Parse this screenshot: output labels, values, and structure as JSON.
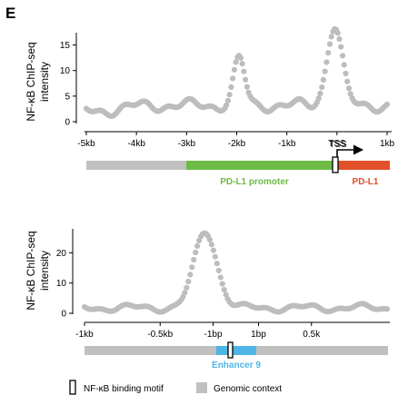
{
  "panel_letter": "E",
  "colors": {
    "points": "#bdbdbd",
    "genomic": "#c0c0c0",
    "promoter": "#6dbb45",
    "gene": "#e2502a",
    "enhancer": "#4eb6e6",
    "motif_box": "#000000",
    "arrow": "#000000"
  },
  "top": {
    "ylabel_lines": [
      "NF-κB ChIP-seq",
      "intensity"
    ],
    "tss_label": "TSS",
    "segments": {
      "promoter_label": "PD-L1 promoter",
      "gene_label": "PD-L1"
    }
  },
  "bottom": {
    "ylabel_lines": [
      "NF-κB ChIP-seq",
      "intensity"
    ],
    "segments": {
      "enhancer_label": "Enhancer 9"
    }
  },
  "legend": {
    "motif_label": "NF-κB binding motif",
    "genomic_label": "Genomic context"
  },
  "chart_data": [
    {
      "type": "scatter",
      "xlabel": "",
      "ylabel": "NF-κB ChIP-seq intensity",
      "x_ticks": [
        "-5kb",
        "-4kb",
        "-3kb",
        "-2kb",
        "-1kb",
        "TSS",
        "1kb"
      ],
      "y_ticks": [
        "0",
        "5",
        "10",
        "15"
      ],
      "xlim": [
        -5000,
        1000
      ],
      "ylim": [
        0,
        19
      ],
      "grid": false,
      "peaks": [
        {
          "position": -1950,
          "intensity": 12.2
        },
        {
          "position": -50,
          "intensity": 18.8
        }
      ],
      "annotation_track": [
        {
          "label": "",
          "type": "genomic",
          "start": -5000,
          "end": -2900
        },
        {
          "label": "PD-L1 promoter",
          "type": "promoter",
          "start": -2900,
          "end": -150
        },
        {
          "label": "NF-κB binding motif",
          "type": "motif",
          "start": -150,
          "end": -20
        },
        {
          "label": "PD-L1",
          "type": "gene",
          "start": -20,
          "end": 1000
        }
      ]
    },
    {
      "type": "scatter",
      "xlabel": "",
      "ylabel": "NF-κB ChIP-seq intensity",
      "x_ticks": [
        "-1kb",
        "-0.5kb",
        "-1bp",
        "1bp",
        "0.5k"
      ],
      "y_ticks": [
        "0",
        "10",
        "20"
      ],
      "xlim": [
        -1000,
        1000
      ],
      "ylim": [
        0,
        28
      ],
      "grid": false,
      "peaks": [
        {
          "position": -200,
          "intensity": 27
        }
      ],
      "annotation_track": [
        {
          "label": "",
          "type": "genomic",
          "start": -1000,
          "end": 1000
        },
        {
          "label": "Enhancer 9",
          "type": "enhancer",
          "start": -350,
          "end": 0
        },
        {
          "label": "NF-κB binding motif",
          "type": "motif",
          "start": -200,
          "end": -160
        }
      ]
    }
  ]
}
